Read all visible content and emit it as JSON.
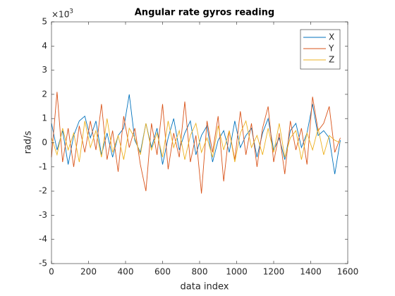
{
  "chart_data": {
    "type": "line",
    "title": "Angular rate gyros reading",
    "x_label": "data index",
    "y_label": "rad/s",
    "y_multiplier": {
      "base": "×10",
      "exponent": "-3"
    },
    "x": [
      0,
      30,
      60,
      90,
      120,
      150,
      180,
      210,
      240,
      270,
      300,
      330,
      360,
      390,
      420,
      450,
      480,
      510,
      540,
      570,
      600,
      630,
      660,
      690,
      720,
      750,
      780,
      810,
      840,
      870,
      900,
      930,
      960,
      990,
      1020,
      1050,
      1080,
      1110,
      1140,
      1170,
      1200,
      1230,
      1260,
      1290,
      1320,
      1350,
      1380,
      1410,
      1440,
      1470,
      1500,
      1530,
      1560
    ],
    "series": [
      {
        "name": "X",
        "color": "#0072bd",
        "values": [
          0.8,
          -0.3,
          0.5,
          -0.9,
          0.3,
          0.9,
          1.1,
          0.2,
          0.9,
          -0.5,
          0.4,
          -0.6,
          0.3,
          0.6,
          2.0,
          0.1,
          -0.4,
          0.8,
          -0.2,
          0.6,
          -0.9,
          0.2,
          1.0,
          -0.3,
          0.4,
          0.9,
          -0.5,
          0.3,
          0.7,
          -0.8,
          0.1,
          0.5,
          -0.4,
          0.9,
          -0.2,
          0.3,
          0.6,
          -0.6,
          0.4,
          1.0,
          -0.3,
          0.2,
          -0.7,
          0.5,
          0.8,
          -0.2,
          0.4,
          1.6,
          0.3,
          0.5,
          0.2,
          -1.3,
          0.1
        ]
      },
      {
        "name": "Y",
        "color": "#d95319",
        "values": [
          -0.6,
          2.1,
          -0.8,
          0.6,
          -1.0,
          0.7,
          -0.4,
          0.9,
          -0.3,
          1.6,
          -0.7,
          0.5,
          -1.2,
          1.1,
          -0.2,
          0.6,
          -0.9,
          -2.0,
          0.8,
          -0.5,
          1.6,
          -1.1,
          0.4,
          -0.6,
          1.7,
          -0.8,
          0.3,
          -2.1,
          0.9,
          -0.4,
          1.1,
          -1.6,
          0.5,
          -0.7,
          1.3,
          -0.5,
          0.8,
          -1.0,
          0.6,
          1.5,
          -0.8,
          0.4,
          -1.3,
          0.9,
          -0.3,
          0.6,
          -0.9,
          1.9,
          0.5,
          0.8,
          1.5,
          -0.4,
          0.2
        ]
      },
      {
        "name": "Z",
        "color": "#edb120",
        "values": [
          0.2,
          -0.5,
          0.6,
          -0.3,
          0.4,
          -0.8,
          0.9,
          -0.2,
          0.5,
          -0.6,
          1.0,
          -0.4,
          0.3,
          -0.7,
          0.6,
          0.2,
          -0.5,
          0.8,
          -0.3,
          0.4,
          -0.6,
          0.9,
          -0.2,
          0.5,
          -0.7,
          0.3,
          0.8,
          -0.4,
          0.2,
          -0.6,
          0.7,
          -0.3,
          0.5,
          -0.8,
          0.4,
          0.9,
          -0.2,
          0.3,
          -0.5,
          0.6,
          -0.4,
          0.8,
          -0.6,
          0.2,
          0.5,
          -0.7,
          0.4,
          -0.3,
          0.6,
          -0.5,
          0.3,
          0.1,
          0.0
        ]
      }
    ],
    "xlim": [
      0,
      1600
    ],
    "xticks": [
      0,
      200,
      400,
      600,
      800,
      1000,
      1200,
      1400,
      1600
    ],
    "ylim": [
      -5,
      5
    ],
    "yticks": [
      -5,
      -4,
      -3,
      -2,
      -1,
      0,
      1,
      2,
      3,
      4,
      5
    ],
    "legend": "northeast",
    "grid": false
  }
}
